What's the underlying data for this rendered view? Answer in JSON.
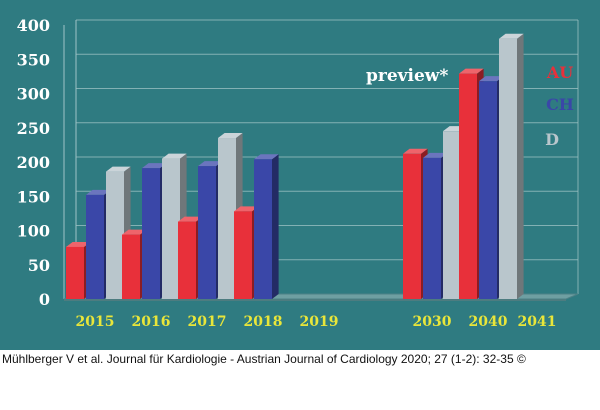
{
  "chart_data": {
    "type": "bar",
    "title": "",
    "xlabel": "",
    "ylabel": "",
    "ylim": [
      0,
      400
    ],
    "yticks": [
      0,
      50,
      100,
      150,
      200,
      250,
      300,
      350,
      400
    ],
    "grid": true,
    "legend_position": "right",
    "categories": [
      "2015",
      "2016",
      "2017",
      "2018",
      "2019",
      "",
      "2030",
      "2040",
      "2041"
    ],
    "series": [
      {
        "name": "AU",
        "color": "#e8303a",
        "values": [
          76,
          94,
          113,
          128,
          null,
          null,
          212,
          329,
          null
        ]
      },
      {
        "name": "CH",
        "color": "#3a47a8",
        "values": [
          152,
          191,
          194,
          204,
          null,
          null,
          206,
          318,
          null
        ]
      },
      {
        "name": "D",
        "color": "#b9c6cc",
        "values": [
          186,
          205,
          235,
          null,
          null,
          null,
          245,
          380,
          null
        ]
      }
    ],
    "annotations": [
      "preview*"
    ]
  },
  "citation": "Mühlberger V et al. Journal für Kardiologie - Austrian Journal of Cardiology 2020; 27 (1-2): 32-35 ©"
}
